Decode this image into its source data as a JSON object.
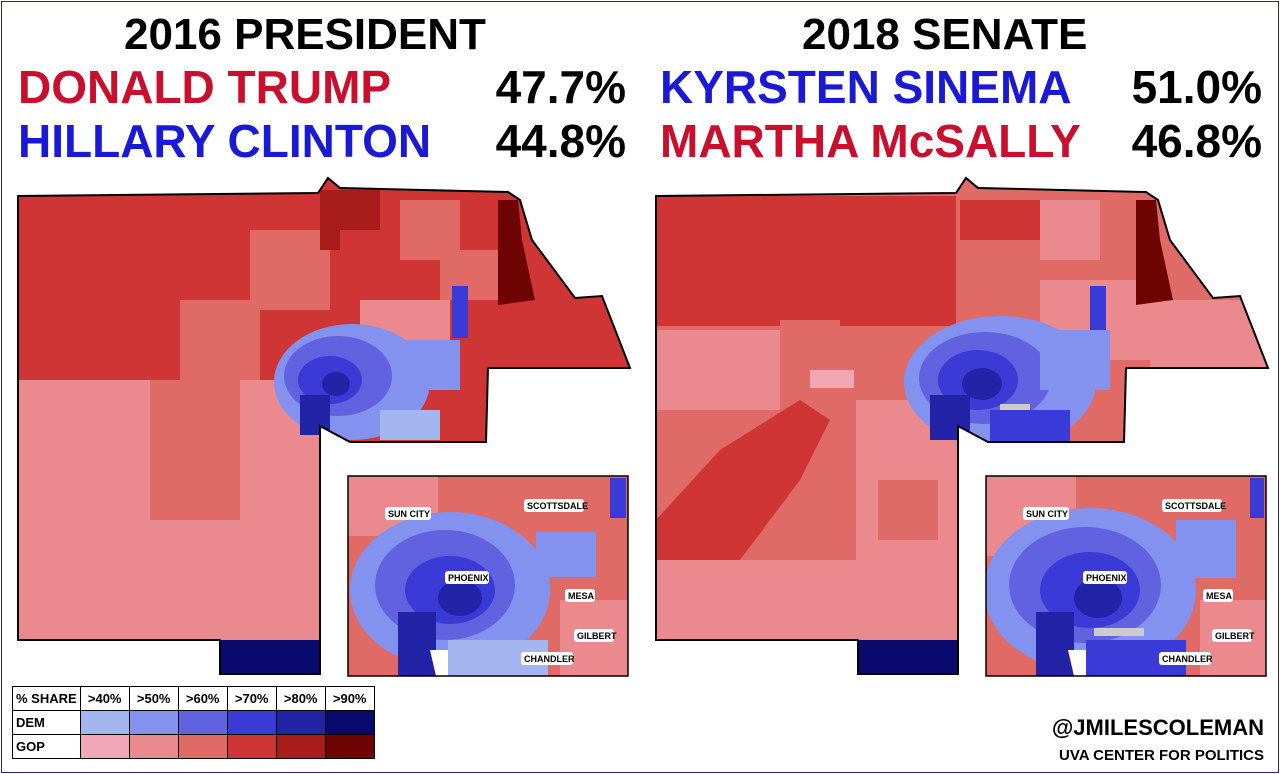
{
  "left_panel": {
    "title": "2016 PRESIDENT",
    "candidates": [
      {
        "name": "DONALD TRUMP",
        "pct": "47.7%",
        "party": "GOP"
      },
      {
        "name": "HILLARY CLINTON",
        "pct": "44.8%",
        "party": "DEM"
      }
    ]
  },
  "right_panel": {
    "title": "2018 SENATE",
    "candidates": [
      {
        "name": "KYRSTEN SINEMA",
        "pct": "51.0%",
        "party": "DEM"
      },
      {
        "name": "MARTHA McSALLY",
        "pct": "46.8%",
        "party": "GOP"
      }
    ]
  },
  "inset_labels": [
    "SUN CITY",
    "SCOTTSDALE",
    "PHOENIX",
    "MESA",
    "GILBERT",
    "CHANDLER"
  ],
  "legend": {
    "header": "% SHARE",
    "bins": [
      ">40%",
      ">50%",
      ">60%",
      ">70%",
      ">80%",
      ">90%"
    ],
    "rows": [
      {
        "label": "DEM",
        "colors": [
          "#a4b6f0",
          "#8292ee",
          "#6062e0",
          "#3a3ad6",
          "#2323a8",
          "#0a0a6e"
        ]
      },
      {
        "label": "GOP",
        "colors": [
          "#f2a7b8",
          "#eb8a8e",
          "#e06a66",
          "#cf3535",
          "#a81c1c",
          "#6e0404"
        ]
      }
    ]
  },
  "credits": {
    "handle": "@JMILESCOLEMAN",
    "org": "UVA CENTER FOR POLITICS"
  },
  "colors": {
    "gop_text": "#c8102e",
    "dem_text": "#1a1ad6"
  }
}
